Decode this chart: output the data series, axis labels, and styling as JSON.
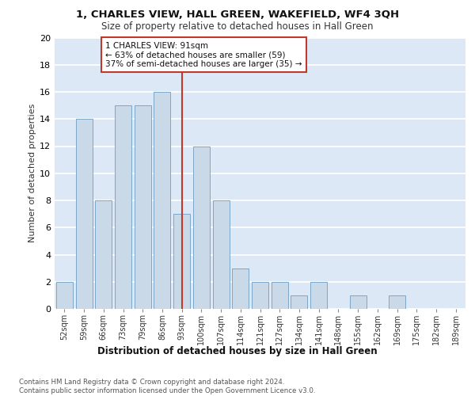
{
  "title": "1, CHARLES VIEW, HALL GREEN, WAKEFIELD, WF4 3QH",
  "subtitle": "Size of property relative to detached houses in Hall Green",
  "xlabel": "Distribution of detached houses by size in Hall Green",
  "ylabel": "Number of detached properties",
  "footer": "Contains HM Land Registry data © Crown copyright and database right 2024.\nContains public sector information licensed under the Open Government Licence v3.0.",
  "categories": [
    "52sqm",
    "59sqm",
    "66sqm",
    "73sqm",
    "79sqm",
    "86sqm",
    "93sqm",
    "100sqm",
    "107sqm",
    "114sqm",
    "121sqm",
    "127sqm",
    "134sqm",
    "141sqm",
    "148sqm",
    "155sqm",
    "162sqm",
    "169sqm",
    "175sqm",
    "182sqm",
    "189sqm"
  ],
  "values": [
    2,
    14,
    8,
    15,
    15,
    16,
    7,
    12,
    8,
    3,
    2,
    2,
    1,
    2,
    0,
    1,
    0,
    1,
    0,
    0,
    0
  ],
  "bar_color": "#c9d9e8",
  "bar_edge_color": "#7ba7c9",
  "bg_color": "#dce8f5",
  "grid_color": "#ffffff",
  "vline_x_index": 6,
  "vline_color": "#c0392b",
  "annotation_text": "1 CHARLES VIEW: 91sqm\n← 63% of detached houses are smaller (59)\n37% of semi-detached houses are larger (35) →",
  "annotation_box_color": "#ffffff",
  "annotation_box_edge": "#c0392b",
  "ylim": [
    0,
    20
  ],
  "yticks": [
    0,
    2,
    4,
    6,
    8,
    10,
    12,
    14,
    16,
    18,
    20
  ]
}
